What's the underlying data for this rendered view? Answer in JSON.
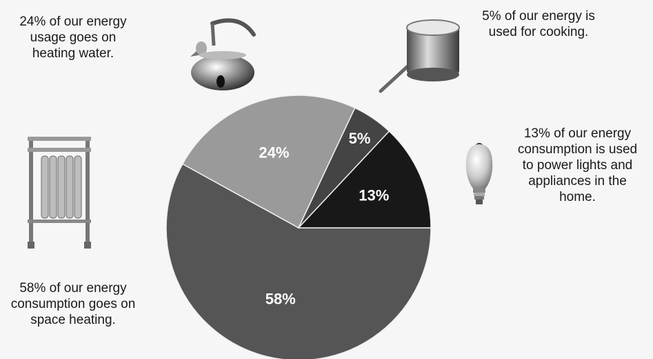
{
  "chart_data": {
    "type": "pie",
    "slices": [
      {
        "value": 58,
        "label": "58%",
        "color": "#555555",
        "label_color": "#ffffff"
      },
      {
        "value": 24,
        "label": "24%",
        "color": "#9a9a9a",
        "label_color": "#ffffff"
      },
      {
        "value": 5,
        "label": "5%",
        "color": "#444444",
        "label_color": "#ffffff"
      },
      {
        "value": 13,
        "label": "13%",
        "color": "#181818",
        "label_color": "#ffffff"
      }
    ]
  },
  "annotations": {
    "water": "24% of our energy\nusage goes on\nheating water.",
    "cooking": "5% of our energy is\nused for cooking.",
    "lights": "13% of our energy\nconsumption is used\nto power lights and\nappliances in the\nhome.",
    "space": "58% of our energy\nconsumption goes on\nspace heating."
  },
  "icons": [
    "kettle-icon",
    "saucepan-icon",
    "light-bulb-icon",
    "radiator-icon"
  ]
}
